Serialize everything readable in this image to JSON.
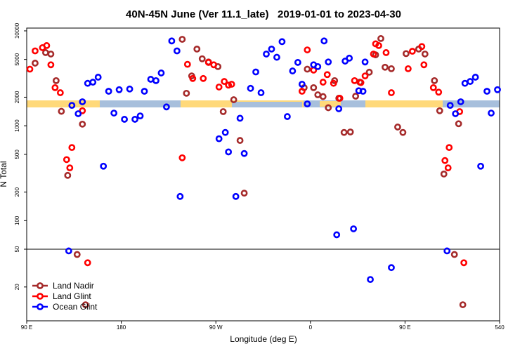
{
  "chart_data": {
    "type": "scatter",
    "title": "40N-45N June (Ver 11.1_late)   2019-01-01 to 2023-04-30",
    "xlabel": "Longitude (deg E)",
    "ylabel": "N Total",
    "log_y": true,
    "legend": "bottom-left",
    "hline": 50,
    "xlim": [
      90,
      540
    ],
    "xticks": [
      {
        "value": 90,
        "label": "90 E"
      },
      180,
      {
        "value": 270,
        "label": "90 W"
      },
      {
        "value": 360,
        "label": "0"
      },
      {
        "value": 450,
        "label": "90 E"
      },
      540
    ],
    "ylim": [
      8.8,
      10700
    ],
    "yticks": [
      20,
      50,
      100,
      200,
      500,
      1000,
      2000,
      5000,
      10000
    ],
    "series": [
      {
        "name": "Land Nadir",
        "color": "#a52a2a",
        "x": [
          98,
          108,
          113,
          118,
          123,
          129,
          138,
          143,
          146,
          238,
          242,
          247,
          252,
          257,
          263,
          272,
          277,
          287,
          293,
          297,
          354,
          357,
          363,
          367,
          372,
          377,
          383,
          387,
          392,
          398,
          403,
          407,
          416,
          422,
          427,
          431,
          437,
          443,
          448,
          451,
          463,
          469,
          478,
          483,
          487,
          497,
          501,
          505
        ],
        "values": [
          4570,
          5900,
          5700,
          2990,
          1420,
          300,
          44,
          1040,
          13,
          8150,
          2200,
          3350,
          6430,
          5080,
          4700,
          4200,
          1410,
          1880,
          700,
          195,
          2520,
          3950,
          2520,
          2120,
          2030,
          1550,
          2990,
          1950,
          850,
          860,
          2050,
          2880,
          3670,
          5590,
          8300,
          4140,
          3990,
          970,
          850,
          5760,
          6430,
          5700,
          2990,
          1440,
          310,
          44,
          1050,
          13
        ]
      },
      {
        "name": "Land Glint",
        "color": "#ff0000",
        "x": [
          93,
          98,
          105,
          109,
          113,
          117,
          122,
          128,
          131,
          133,
          143,
          148,
          238,
          243,
          248,
          258,
          263,
          268,
          273,
          278,
          282,
          285,
          352,
          357,
          363,
          372,
          376,
          382,
          388,
          402,
          408,
          412,
          420,
          422,
          425,
          432,
          437,
          453,
          457,
          466,
          468,
          477,
          482,
          488,
          491,
          492,
          502,
          506
        ],
        "values": [
          3950,
          6150,
          6650,
          7000,
          4390,
          2520,
          2230,
          440,
          360,
          590,
          1440,
          36,
          460,
          4440,
          3150,
          3150,
          4650,
          4390,
          2560,
          2930,
          2680,
          2740,
          2310,
          6300,
          3860,
          2880,
          3460,
          2800,
          1950,
          2990,
          2850,
          3350,
          5700,
          7300,
          7000,
          5900,
          2230,
          3990,
          6100,
          6840,
          4390,
          2520,
          2260,
          430,
          360,
          590,
          1410,
          36
        ]
      },
      {
        "name": "Ocean Glint",
        "color": "#0000ff",
        "x": [
          130,
          133,
          139,
          143,
          148,
          153,
          158,
          163,
          168,
          173,
          178,
          183,
          188,
          193,
          198,
          202,
          208,
          213,
          218,
          223,
          228,
          233,
          236,
          273,
          279,
          282,
          289,
          293,
          297,
          303,
          308,
          313,
          318,
          323,
          328,
          333,
          338,
          343,
          348,
          352,
          357,
          363,
          367,
          373,
          377,
          385,
          387,
          393,
          397,
          401,
          406,
          410,
          412,
          417,
          437,
          490,
          493,
          498,
          503,
          507,
          512,
          517,
          522,
          528,
          532,
          538
        ],
        "values": [
          48,
          1640,
          1340,
          1790,
          2800,
          2880,
          3250,
          375,
          2310,
          1360,
          2400,
          1170,
          2440,
          1170,
          1270,
          2310,
          3090,
          2990,
          3600,
          1580,
          7830,
          6150,
          180,
          730,
          850,
          530,
          180,
          1200,
          510,
          2480,
          3690,
          2230,
          5700,
          6430,
          5270,
          7700,
          1250,
          3780,
          4650,
          2740,
          1700,
          4390,
          4200,
          7830,
          4700,
          71,
          1510,
          4800,
          5160,
          82,
          2340,
          2310,
          4700,
          24,
          32,
          48,
          1640,
          1340,
          1790,
          2800,
          2930,
          3250,
          375,
          2310,
          1360,
          2400
        ]
      }
    ]
  }
}
